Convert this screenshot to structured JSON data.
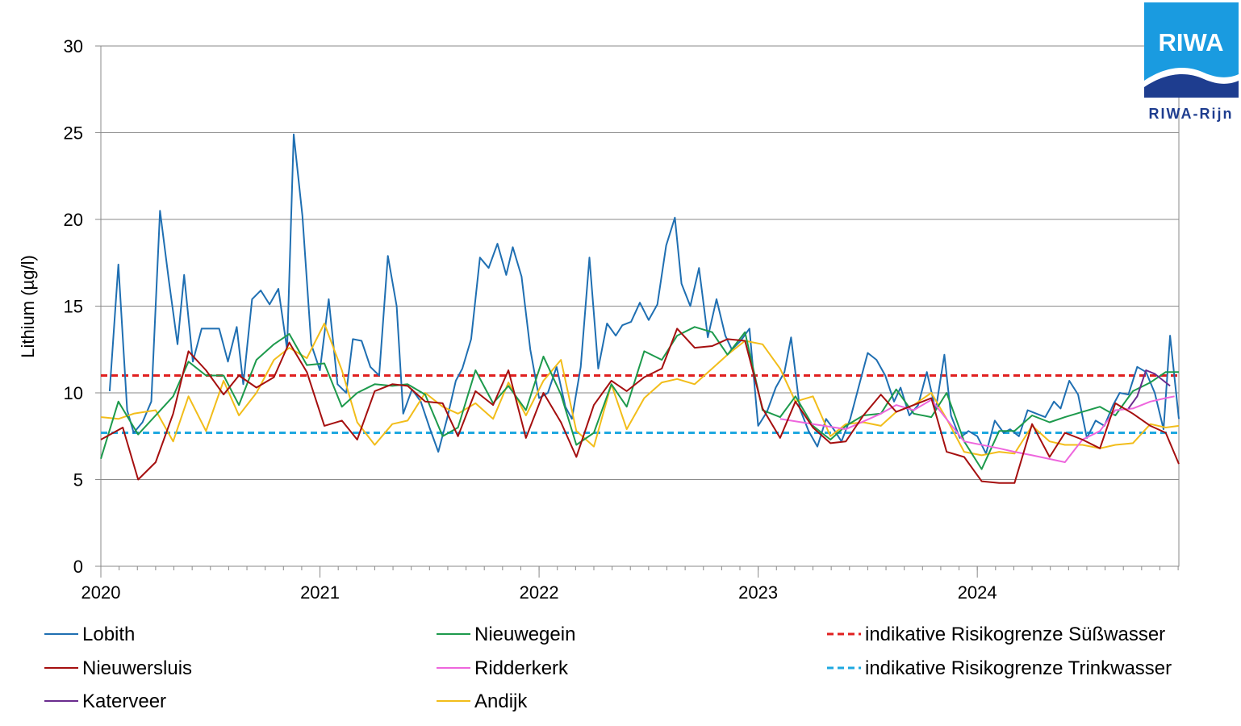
{
  "chart_data": {
    "type": "line",
    "title": "",
    "xlabel": "",
    "ylabel": "Lithium (µg/l)",
    "ylim": [
      0,
      30
    ],
    "xlim": [
      2020,
      2024.92
    ],
    "yticks": [
      0,
      5,
      10,
      15,
      20,
      25,
      30
    ],
    "xticks": [
      {
        "value": 2020,
        "label": "2020"
      },
      {
        "value": 2021,
        "label": "2021"
      },
      {
        "value": 2022,
        "label": "2022"
      },
      {
        "value": 2023,
        "label": "2023"
      },
      {
        "value": 2024,
        "label": "2024"
      }
    ],
    "grid": "horizontal",
    "legend_position": "bottom",
    "series": [
      {
        "name": "Lobith",
        "color": "#1f6fb2",
        "dash": false,
        "x": [
          2020.04,
          2020.08,
          2020.12,
          2020.15,
          2020.19,
          2020.23,
          2020.27,
          2020.31,
          2020.35,
          2020.38,
          2020.42,
          2020.46,
          2020.5,
          2020.54,
          2020.58,
          2020.62,
          2020.65,
          2020.69,
          2020.73,
          2020.77,
          2020.81,
          2020.85,
          2020.88,
          2020.92,
          2020.96,
          2021.0,
          2021.04,
          2021.08,
          2021.12,
          2021.15,
          2021.19,
          2021.23,
          2021.27,
          2021.31,
          2021.35,
          2021.38,
          2021.42,
          2021.46,
          2021.5,
          2021.54,
          2021.58,
          2021.62,
          2021.65,
          2021.69,
          2021.73,
          2021.77,
          2021.81,
          2021.85,
          2021.88,
          2021.92,
          2021.96,
          2022.0,
          2022.04,
          2022.08,
          2022.12,
          2022.15,
          2022.19,
          2022.23,
          2022.27,
          2022.31,
          2022.35,
          2022.38,
          2022.42,
          2022.46,
          2022.5,
          2022.54,
          2022.58,
          2022.62,
          2022.65,
          2022.69,
          2022.73,
          2022.77,
          2022.81,
          2022.85,
          2022.88,
          2022.92,
          2022.96,
          2023.0,
          2023.04,
          2023.08,
          2023.12,
          2023.15,
          2023.19,
          2023.23,
          2023.27,
          2023.31,
          2023.35,
          2023.38,
          2023.42,
          2023.46,
          2023.5,
          2023.54,
          2023.58,
          2023.62,
          2023.65,
          2023.69,
          2023.73,
          2023.77,
          2023.81,
          2023.85,
          2023.88,
          2023.92,
          2023.96,
          2024.0,
          2024.04,
          2024.08,
          2024.12,
          2024.15,
          2024.19,
          2024.23,
          2024.27,
          2024.31,
          2024.35,
          2024.38,
          2024.42,
          2024.46,
          2024.5,
          2024.54,
          2024.58,
          2024.62,
          2024.65,
          2024.69,
          2024.73,
          2024.77,
          2024.81,
          2024.85,
          2024.88,
          2024.92
        ],
        "y": [
          10.1,
          17.4,
          9.0,
          7.7,
          8.3,
          9.5,
          20.5,
          16.5,
          12.8,
          16.8,
          11.8,
          13.7,
          13.7,
          13.7,
          11.8,
          13.8,
          10.5,
          15.4,
          15.9,
          15.1,
          16.0,
          12.5,
          24.9,
          20.2,
          12.8,
          11.3,
          15.4,
          10.5,
          10.0,
          13.1,
          13.0,
          11.5,
          11.0,
          17.9,
          15.0,
          8.8,
          10.2,
          9.5,
          8.0,
          6.6,
          8.5,
          10.7,
          11.4,
          13.1,
          17.8,
          17.2,
          18.6,
          16.8,
          18.4,
          16.7,
          12.5,
          9.7,
          10.0,
          11.5,
          9.2,
          8.5,
          11.5,
          17.8,
          11.4,
          14.0,
          13.3,
          13.9,
          14.1,
          15.2,
          14.2,
          15.1,
          18.5,
          20.1,
          16.3,
          15.0,
          17.2,
          13.2,
          15.4,
          13.3,
          12.5,
          13.0,
          13.7,
          8.1,
          8.9,
          10.3,
          11.2,
          13.2,
          9.1,
          7.8,
          6.9,
          8.5,
          7.8,
          7.2,
          8.5,
          10.4,
          12.3,
          11.9,
          11.0,
          9.5,
          10.3,
          8.7,
          9.3,
          11.2,
          9.0,
          12.2,
          8.7,
          7.4,
          7.8,
          7.5,
          6.5,
          8.4,
          7.7,
          7.9,
          7.5,
          9.0,
          8.8,
          8.6,
          9.5,
          9.1,
          10.7,
          9.9,
          7.4,
          8.4,
          8.1,
          9.3,
          10.0,
          9.9,
          11.5,
          11.2,
          10.0,
          7.9,
          13.3,
          8.5
        ]
      },
      {
        "name": "Nieuwersluis",
        "color": "#a50f0f",
        "dash": false,
        "x": [
          2020.0,
          2020.1,
          2020.17,
          2020.25,
          2020.33,
          2020.4,
          2020.48,
          2020.56,
          2020.63,
          2020.71,
          2020.79,
          2020.86,
          2020.94,
          2021.02,
          2021.1,
          2021.17,
          2021.25,
          2021.33,
          2021.4,
          2021.48,
          2021.56,
          2021.63,
          2021.71,
          2021.79,
          2021.86,
          2021.94,
          2022.02,
          2022.1,
          2022.17,
          2022.25,
          2022.33,
          2022.4,
          2022.48,
          2022.56,
          2022.63,
          2022.71,
          2022.79,
          2022.86,
          2022.94,
          2023.02,
          2023.1,
          2023.17,
          2023.25,
          2023.33,
          2023.4,
          2023.48,
          2023.56,
          2023.63,
          2023.71,
          2023.79,
          2023.86,
          2023.94,
          2024.02,
          2024.1,
          2024.17,
          2024.25,
          2024.33,
          2024.4,
          2024.48,
          2024.56,
          2024.63,
          2024.71,
          2024.79,
          2024.86,
          2024.92
        ],
        "y": [
          7.3,
          8.0,
          5.0,
          6.0,
          8.8,
          12.4,
          11.3,
          9.9,
          11.0,
          10.3,
          10.9,
          12.9,
          11.2,
          8.1,
          8.4,
          7.3,
          10.1,
          10.5,
          10.4,
          9.5,
          9.4,
          7.5,
          10.1,
          9.3,
          11.3,
          7.4,
          10.0,
          8.3,
          6.3,
          9.3,
          10.7,
          10.1,
          10.9,
          11.4,
          13.7,
          12.6,
          12.7,
          13.1,
          13.0,
          9.1,
          7.4,
          9.5,
          8.0,
          7.1,
          7.2,
          8.7,
          9.9,
          8.9,
          9.3,
          9.7,
          6.6,
          6.3,
          4.9,
          4.8,
          4.8,
          8.2,
          6.3,
          7.7,
          7.3,
          6.8,
          9.4,
          8.8,
          8.1,
          7.7,
          5.9
        ]
      },
      {
        "name": "Katerveer",
        "color": "#6a2c8e",
        "dash": false,
        "x": [
          2024.69,
          2024.73,
          2024.77,
          2024.81,
          2024.85,
          2024.88
        ],
        "y": [
          9.1,
          9.8,
          11.3,
          11.1,
          10.7,
          10.4
        ]
      },
      {
        "name": "Nieuwegein",
        "color": "#1d9a4c",
        "dash": false,
        "x": [
          2020.0,
          2020.08,
          2020.17,
          2020.25,
          2020.33,
          2020.4,
          2020.48,
          2020.56,
          2020.63,
          2020.71,
          2020.79,
          2020.86,
          2020.94,
          2021.02,
          2021.1,
          2021.17,
          2021.25,
          2021.33,
          2021.4,
          2021.48,
          2021.56,
          2021.63,
          2021.71,
          2021.79,
          2021.86,
          2021.94,
          2022.02,
          2022.1,
          2022.17,
          2022.25,
          2022.33,
          2022.4,
          2022.48,
          2022.56,
          2022.63,
          2022.71,
          2022.79,
          2022.86,
          2022.94,
          2023.02,
          2023.1,
          2023.17,
          2023.25,
          2023.33,
          2023.4,
          2023.48,
          2023.56,
          2023.63,
          2023.71,
          2023.79,
          2023.86,
          2023.94,
          2024.02,
          2024.1,
          2024.17,
          2024.25,
          2024.33,
          2024.4,
          2024.48,
          2024.56,
          2024.63,
          2024.71,
          2024.79,
          2024.86,
          2024.92
        ],
        "y": [
          6.2,
          9.5,
          7.6,
          8.7,
          9.8,
          11.8,
          11.0,
          11.0,
          9.3,
          11.9,
          12.8,
          13.4,
          11.6,
          11.7,
          9.2,
          10.0,
          10.5,
          10.4,
          10.5,
          9.9,
          7.5,
          8.0,
          11.3,
          9.4,
          10.4,
          9.0,
          12.1,
          9.9,
          7.0,
          7.7,
          10.5,
          9.2,
          12.4,
          11.9,
          13.3,
          13.8,
          13.5,
          12.2,
          13.5,
          9.0,
          8.6,
          9.8,
          8.1,
          7.3,
          8.1,
          8.7,
          8.8,
          10.2,
          8.8,
          8.6,
          10.0,
          7.2,
          5.6,
          7.8,
          7.8,
          8.7,
          8.3,
          8.6,
          8.9,
          9.2,
          8.7,
          10.1,
          10.6,
          11.2,
          11.2
        ]
      },
      {
        "name": "Ridderkerk",
        "color": "#ee66dd",
        "dash": false,
        "x": [
          2023.1,
          2023.25,
          2023.4,
          2023.56,
          2023.63,
          2023.71,
          2023.79,
          2023.94,
          2024.1,
          2024.17,
          2024.25,
          2024.4,
          2024.48,
          2024.56,
          2024.63,
          2024.71,
          2024.79,
          2024.86,
          2024.9
        ],
        "y": [
          8.5,
          8.2,
          7.9,
          8.8,
          9.3,
          9.0,
          9.6,
          7.2,
          6.8,
          6.6,
          6.4,
          6.0,
          7.3,
          7.8,
          9.0,
          9.1,
          9.5,
          9.7,
          9.8
        ]
      },
      {
        "name": "Andijk",
        "color": "#f2bd1a",
        "dash": false,
        "x": [
          2020.0,
          2020.08,
          2020.15,
          2020.25,
          2020.33,
          2020.4,
          2020.48,
          2020.56,
          2020.63,
          2020.71,
          2020.79,
          2020.86,
          2020.94,
          2021.02,
          2021.1,
          2021.17,
          2021.25,
          2021.33,
          2021.4,
          2021.48,
          2021.56,
          2021.63,
          2021.71,
          2021.79,
          2021.86,
          2021.94,
          2022.02,
          2022.1,
          2022.17,
          2022.25,
          2022.33,
          2022.4,
          2022.48,
          2022.56,
          2022.63,
          2022.71,
          2022.79,
          2022.86,
          2022.94,
          2023.02,
          2023.1,
          2023.17,
          2023.25,
          2023.33,
          2023.4,
          2023.48,
          2023.56,
          2023.63,
          2023.71,
          2023.79,
          2023.86,
          2023.94,
          2024.02,
          2024.1,
          2024.17,
          2024.25,
          2024.33,
          2024.4,
          2024.48,
          2024.56,
          2024.63,
          2024.71,
          2024.79,
          2024.86,
          2024.92
        ],
        "y": [
          8.6,
          8.5,
          8.8,
          9.0,
          7.2,
          9.8,
          7.8,
          10.7,
          8.7,
          10.0,
          11.9,
          12.6,
          12.0,
          14.0,
          11.3,
          8.3,
          7.0,
          8.2,
          8.4,
          10.0,
          9.2,
          8.8,
          9.4,
          8.5,
          10.6,
          8.7,
          10.7,
          11.9,
          7.8,
          6.9,
          10.5,
          7.9,
          9.7,
          10.6,
          10.8,
          10.5,
          11.4,
          12.2,
          13.0,
          12.8,
          11.4,
          9.5,
          9.8,
          7.5,
          8.2,
          8.3,
          8.1,
          8.9,
          9.3,
          10.0,
          8.5,
          6.6,
          6.4,
          6.6,
          6.5,
          8.1,
          7.2,
          7.0,
          7.0,
          6.8,
          7.0,
          7.1,
          8.2,
          8.0,
          8.1
        ]
      },
      {
        "name": "indikative Risikogrenze Süßwasser",
        "color": "#e02020",
        "dash": true,
        "x": [
          2020.0,
          2024.92
        ],
        "y": [
          11.0,
          11.0
        ]
      },
      {
        "name": "indikative Risikogrenze Trinkwasser",
        "color": "#1ea8e0",
        "dash": true,
        "x": [
          2020.0,
          2024.92
        ],
        "y": [
          7.7,
          7.7
        ]
      }
    ],
    "legend": [
      {
        "series": 0,
        "col": 0,
        "row": 0
      },
      {
        "series": 3,
        "col": 1,
        "row": 0
      },
      {
        "series": 6,
        "col": 2,
        "row": 0
      },
      {
        "series": 1,
        "col": 0,
        "row": 1
      },
      {
        "series": 4,
        "col": 1,
        "row": 1
      },
      {
        "series": 7,
        "col": 2,
        "row": 1
      },
      {
        "series": 2,
        "col": 0,
        "row": 2
      },
      {
        "series": 5,
        "col": 1,
        "row": 2
      }
    ]
  },
  "logo": {
    "text": "RIWA",
    "subtitle": "RIWA-Rijn",
    "color": "#1a9be0",
    "dark_color": "#1e3d8f"
  }
}
